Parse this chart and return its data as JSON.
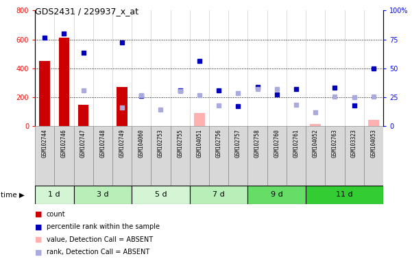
{
  "title": "GDS2431 / 229937_x_at",
  "samples": [
    "GSM102744",
    "GSM102746",
    "GSM102747",
    "GSM102748",
    "GSM102749",
    "GSM104060",
    "GSM102753",
    "GSM102755",
    "GSM104051",
    "GSM102756",
    "GSM102757",
    "GSM102758",
    "GSM102760",
    "GSM102761",
    "GSM104052",
    "GSM102763",
    "GSM103323",
    "GSM104053"
  ],
  "time_groups": [
    {
      "label": "1 d",
      "start": 0,
      "end": 2,
      "color": "#d4f5d4"
    },
    {
      "label": "3 d",
      "start": 2,
      "end": 5,
      "color": "#b8eeb8"
    },
    {
      "label": "5 d",
      "start": 5,
      "end": 8,
      "color": "#d4f5d4"
    },
    {
      "label": "7 d",
      "start": 8,
      "end": 11,
      "color": "#b8eeb8"
    },
    {
      "label": "9 d",
      "start": 11,
      "end": 14,
      "color": "#66dd66"
    },
    {
      "label": "11 d",
      "start": 14,
      "end": 18,
      "color": "#33cc33"
    }
  ],
  "red_bars": {
    "indices": [
      0,
      1,
      2,
      4
    ],
    "values": [
      450,
      610,
      150,
      270
    ]
  },
  "pink_bars": {
    "indices": [
      8,
      14,
      17
    ],
    "values": [
      90,
      15,
      45
    ]
  },
  "blue_squares": {
    "indices": [
      0,
      1,
      2,
      4,
      5,
      7,
      8,
      9,
      10,
      11,
      12,
      13,
      15,
      16,
      17
    ],
    "values": [
      610,
      640,
      510,
      580,
      210,
      250,
      450,
      250,
      140,
      270,
      220,
      255,
      265,
      145,
      400
    ]
  },
  "light_blue_squares": {
    "indices": [
      2,
      4,
      5,
      6,
      7,
      8,
      9,
      10,
      11,
      12,
      13,
      14,
      15,
      16,
      17
    ],
    "values": [
      250,
      130,
      215,
      115,
      245,
      215,
      145,
      230,
      255,
      255,
      150,
      95,
      205,
      200,
      205
    ]
  },
  "ylim_left": [
    0,
    800
  ],
  "ylim_right": [
    0,
    100
  ],
  "yticks_left": [
    0,
    200,
    400,
    600,
    800
  ],
  "yticks_right": [
    0,
    25,
    50,
    75,
    100
  ]
}
